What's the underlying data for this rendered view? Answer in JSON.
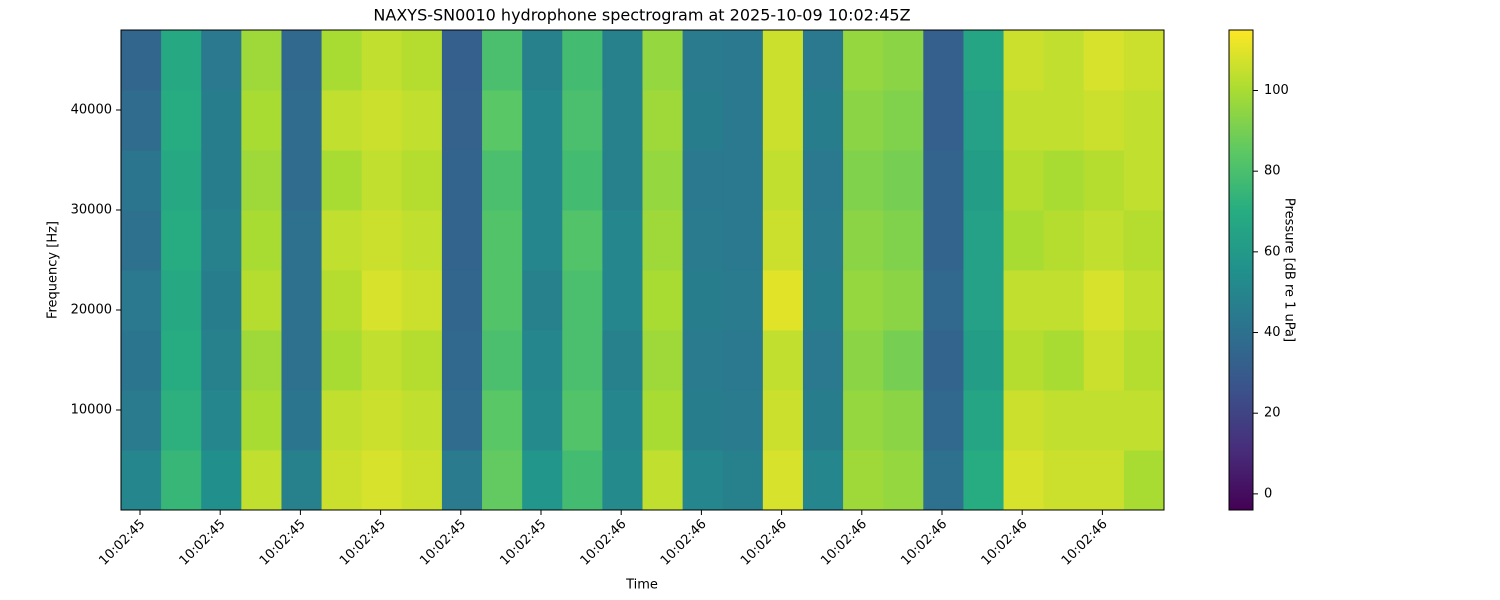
{
  "chart_data": {
    "type": "heatmap",
    "title": "NAXYS-SN0010 hydrophone spectrogram at 2025-10-09 10:02:45Z",
    "xlabel": "Time",
    "ylabel": "Frequency [Hz]",
    "colorbar_label": "Pressure [dB re 1 uPa]",
    "colormap": "viridis",
    "xtick_labels": [
      "10:02:45",
      "10:02:45",
      "10:02:45",
      "10:02:45",
      "10:02:45",
      "10:02:45",
      "10:02:46",
      "10:02:46",
      "10:02:46",
      "10:02:46",
      "10:02:46",
      "10:02:46",
      "10:02:46"
    ],
    "y_edges": [
      0,
      6000,
      12000,
      18000,
      24000,
      30000,
      36000,
      42000,
      48000
    ],
    "ylim": [
      0,
      48000
    ],
    "yticks": [
      10000,
      20000,
      30000,
      40000
    ],
    "clim": [
      -4,
      115
    ],
    "cticks": [
      0,
      20,
      40,
      60,
      80,
      100
    ],
    "z": [
      [
        50,
        75,
        55,
        104,
        48,
        106,
        108,
        106,
        45,
        86,
        58,
        78,
        52,
        104,
        50,
        48,
        108,
        50,
        98,
        96,
        40,
        70,
        108,
        106,
        106,
        100
      ],
      [
        45,
        72,
        50,
        100,
        42,
        104,
        106,
        104,
        38,
        84,
        52,
        82,
        50,
        100,
        46,
        45,
        106,
        46,
        96,
        94,
        36,
        66,
        106,
        104,
        104,
        104
      ],
      [
        42,
        70,
        48,
        98,
        40,
        100,
        104,
        102,
        36,
        80,
        50,
        80,
        48,
        98,
        45,
        44,
        104,
        44,
        94,
        90,
        34,
        62,
        102,
        100,
        106,
        102
      ],
      [
        44,
        68,
        46,
        102,
        40,
        102,
        108,
        106,
        35,
        82,
        48,
        80,
        50,
        100,
        46,
        45,
        110,
        46,
        96,
        94,
        36,
        64,
        104,
        104,
        108,
        104
      ],
      [
        40,
        70,
        48,
        100,
        40,
        104,
        106,
        104,
        34,
        82,
        50,
        82,
        50,
        98,
        45,
        44,
        106,
        45,
        94,
        92,
        34,
        64,
        100,
        102,
        104,
        102
      ],
      [
        42,
        68,
        46,
        98,
        38,
        100,
        104,
        102,
        34,
        80,
        50,
        78,
        48,
        96,
        44,
        44,
        104,
        44,
        92,
        90,
        34,
        62,
        102,
        100,
        102,
        104
      ],
      [
        38,
        70,
        46,
        100,
        38,
        104,
        106,
        104,
        33,
        84,
        50,
        80,
        48,
        98,
        46,
        44,
        106,
        46,
        94,
        92,
        32,
        64,
        104,
        104,
        106,
        104
      ],
      [
        35,
        68,
        44,
        98,
        36,
        100,
        104,
        102,
        32,
        80,
        48,
        78,
        48,
        96,
        45,
        44,
        106,
        44,
        96,
        94,
        32,
        66,
        106,
        104,
        108,
        106
      ]
    ]
  }
}
